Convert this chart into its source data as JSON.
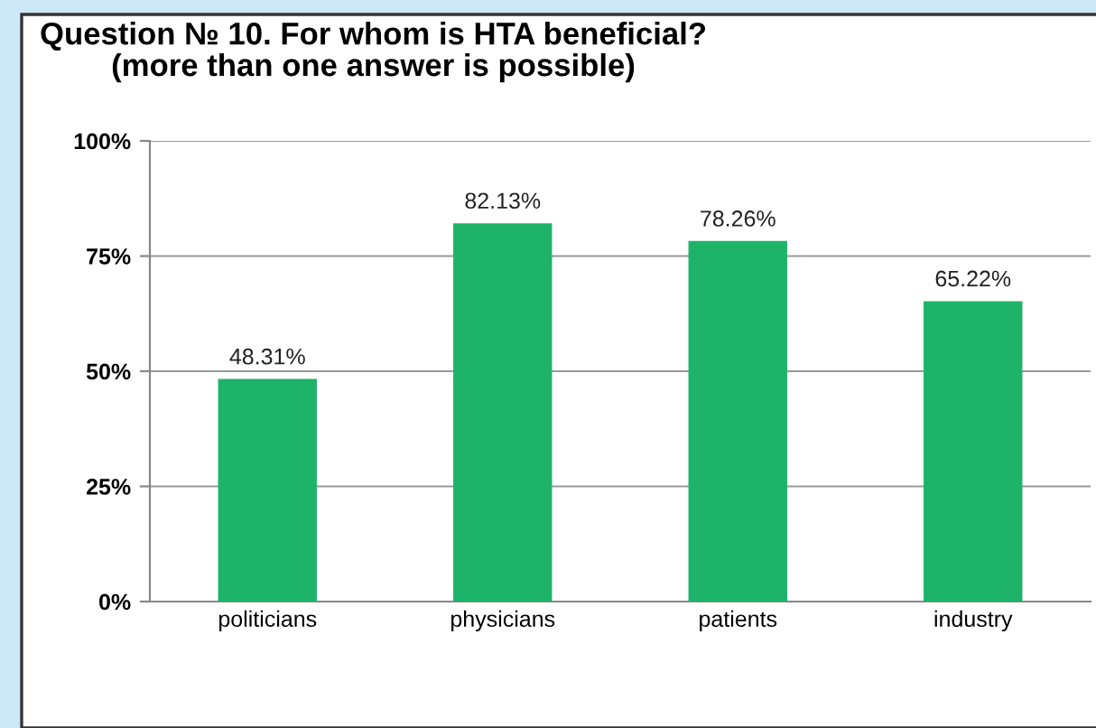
{
  "chart_data": {
    "type": "bar",
    "title": "Question № 10. For whom is HTA beneficial?\n(more than one answer is possible)",
    "categories": [
      "politicians",
      "physicians",
      "patients",
      "industry"
    ],
    "values": [
      48.31,
      82.13,
      78.26,
      65.22
    ],
    "color": "#1db46a",
    "value_labels": [
      "48.31%",
      "82.13%",
      "78.26%",
      "65.22%"
    ],
    "ylim": [
      0,
      100
    ],
    "yticks": [
      {
        "value": 0,
        "label": "0%"
      },
      {
        "value": 25,
        "label": "25%"
      },
      {
        "value": 50,
        "label": "50%"
      },
      {
        "value": 75,
        "label": "75%"
      },
      {
        "value": 100,
        "label": "100%"
      }
    ],
    "grid": "y"
  }
}
